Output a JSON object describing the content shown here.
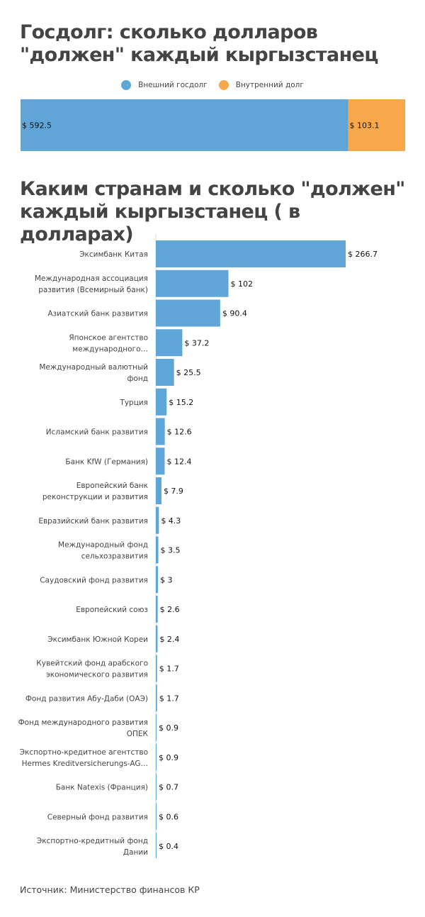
{
  "titles": {
    "main": "Госдолг: сколько долларов \"должен\" каждый кыргызстанец",
    "second": "Каким странам и сколько \"должен\" каждый кыргызстанец ( в долларах)"
  },
  "source": "Источник: Министерство финансов КР",
  "colors": {
    "external": "#5fa5d8",
    "internal": "#f8a84b",
    "bars": "#5fa5d8",
    "axis": "#c6dcef",
    "label_text": "#444444",
    "value_text": "#111111"
  },
  "chart_data": [
    {
      "type": "bar",
      "orientation": "horizontal",
      "stacked": true,
      "title": "Госдолг: сколько долларов \"должен\" каждый кыргызстанец",
      "legend": {
        "position": "top-center",
        "entries": [
          "Внешний госдолг",
          "Внутренний долг"
        ]
      },
      "categories": [
        ""
      ],
      "series": [
        {
          "name": "Внешний госдолг",
          "values": [
            592.5
          ],
          "label": "$ 592.5",
          "color": "#5fa5d8"
        },
        {
          "name": "Внутренний долг",
          "values": [
            103.1
          ],
          "label": "$ 103.1",
          "color": "#f8a84b"
        }
      ],
      "xlabel": "",
      "ylabel": "",
      "grid": false
    },
    {
      "type": "bar",
      "orientation": "horizontal",
      "title": "Каким странам и сколько \"должен\" каждый кыргызстанец ( в долларах)",
      "xlabel": "",
      "ylabel": "",
      "grid": false,
      "xlim": [
        0,
        266.7
      ],
      "value_prefix": "$ ",
      "categories": [
        [
          "Эксимбанк Китая"
        ],
        [
          "Международная ассоциация",
          "развития (Всемирный банк)"
        ],
        [
          "Азиатский банк развития"
        ],
        [
          "Японское агентство",
          "международного…"
        ],
        [
          "Международный валютный",
          "фонд"
        ],
        [
          "Турция"
        ],
        [
          "Исламский банк развития"
        ],
        [
          "Банк KfW (Германия)"
        ],
        [
          "Европейский банк",
          "реконструкции и развития"
        ],
        [
          "Евразийский банк развития"
        ],
        [
          "Международный фонд",
          "сельхозразвития"
        ],
        [
          "Саудовский фонд развития"
        ],
        [
          "Европейский союз"
        ],
        [
          "Эксимбанк Южной Кореи"
        ],
        [
          "Кувейтский фонд арабского",
          "экономического развития"
        ],
        [
          "Фонд развития Абу-Даби (ОАЭ)"
        ],
        [
          "Фонд международного развития",
          "ОПЕК"
        ],
        [
          "Экспортно-кредитное агентство",
          "Hermes Kreditversicherungs-AG…"
        ],
        [
          "Банк Natexis (Франция)"
        ],
        [
          "Северный фонд развития"
        ],
        [
          "Экспортно-кредитный фонд",
          "Дании"
        ]
      ],
      "values": [
        266.7,
        102,
        90.4,
        37.2,
        25.5,
        15.2,
        12.6,
        12.4,
        7.9,
        4.3,
        3.5,
        3,
        2.6,
        2.4,
        1.7,
        1.7,
        0.9,
        0.9,
        0.7,
        0.6,
        0.4
      ],
      "labels": [
        "$ 266.7",
        "$ 102",
        "$ 90.4",
        "$ 37.2",
        "$ 25.5",
        "$ 15.2",
        "$ 12.6",
        "$ 12.4",
        "$ 7.9",
        "$ 4.3",
        "$ 3.5",
        "$ 3",
        "$ 2.6",
        "$ 2.4",
        "$ 1.7",
        "$ 1.7",
        "$ 0.9",
        "$ 0.9",
        "$ 0.7",
        "$ 0.6",
        "$ 0.4"
      ]
    }
  ]
}
